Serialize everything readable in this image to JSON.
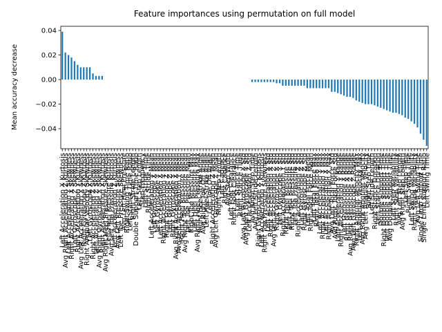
{
  "chart_data": {
    "type": "bar",
    "title": "Feature importances using permutation on full model",
    "y_label": "Mean accuracy decrease",
    "color": "#1f77b4",
    "ylim": [
      -0.0563,
      0.0434
    ],
    "yticks": [
      {
        "value": -0.04,
        "label": "−0.04"
      },
      {
        "value": -0.02,
        "label": "−0.02"
      },
      {
        "value": 0,
        "label": "0.00"
      },
      {
        "value": 0.02,
        "label": "0.02"
      },
      {
        "value": 0.04,
        "label": "0.04"
      }
    ],
    "categories": [
      "Left Acceleration X Kurtosis",
      "Avg Right Acceleration Z Kurtosis",
      "Left Acceleration Y Skewness",
      "Right Acceleration X Skewness",
      "Left Gyroscope Z Skewness",
      "Right Acceleration Y Kurtosis",
      "Avg Left Acceleration X Skewness",
      "Right Gyroscope Z Kurtosis",
      "Right Angular Velocity Skewness",
      "Left Gyroscope X Kurtosis",
      "Right Acceleration Z Skewness",
      "Left Acceleration Z Skewness",
      "Avg Right Gyroscope X Skewness",
      "Right Acceleration X Kurtosis",
      "Avg Right Heel Pressure Skewness",
      "Left Heel Pressure Kurtosis",
      "Avg Left Toe Pressure Kurtosis",
      "Left Acceleration Z Kurtosis",
      "Avg Left Pressure Skewness",
      "Left Toe Pressure Skewness",
      "Avg Left Heel Pressure",
      "Right Swing Time Ratio",
      "Left Stance Time Ratio",
      "Right Stride Length",
      "Double Support Time Ratio",
      "Left Step Length",
      "Step Frequency",
      "Left Stride Time",
      "Right Stride Time",
      "Left Acceleration Y Mean",
      "Left Gyroscope X Mean",
      "Left Gyroscope Y Mean",
      "Left Acceleration X Mean",
      "Right Acceleration Y Mean",
      "Right Gyroscope Z Mean",
      "Left Gyroscope Z Mean",
      "Right Gyroscope Y Mean",
      "Avg Right Acceleration X Mean",
      "Avg Left Acceleration Y Mean",
      "Right Heel Pressure Mean",
      "Avg Right Toe Pressure Mean",
      "Left Toe Pressure Mean",
      "Right Toe Pressure Max",
      "Left Heel Pressure Max",
      "Avg Right Heel Pressure Max",
      "Right Heel Strike Angle",
      "Avg Right Toe Off Angle",
      "Left Heel Strike Angle",
      "Left Toe Off Angle",
      "Right Acceleration Z Mean",
      "Avg Left Gyroscope Z Mean",
      "Right Step Length",
      "Left Cadence",
      "Right Cadence",
      "Avg Step Width",
      "Left Foot Clearance",
      "Right Foot Clearance",
      "Left Stance Time",
      "Right Stance Time",
      "Avg Left Gyroscope X Std",
      "Avg Right Gyroscope Y Std",
      "Left Acceleration Z Std",
      "Avg Right Step Time",
      "Avg Left Stride Length",
      "Right Gyroscope X Kurtosis",
      "Left Acceleration Y Kurtosis",
      "Right Toe Pressure Skewness",
      "Left Acceleration X Std",
      "Right Acceleration X Std",
      "Avg Left Acceleration Z Std",
      "Right Gyroscope X Std",
      "Left Gyroscope Y Std",
      "Right Acceleration Y Std",
      "Right Heel Pressure Std",
      "Left Heel Pressure Std",
      "Right Toe Pressure Std",
      "Left Toe Pressure Std",
      "Right Acceleration Z Std",
      "Left Gyroscope Z Std",
      "Right Gyroscope Z Std",
      "Left Total Force Mean",
      "Right Total Force Mean",
      "Left Total Force Max",
      "Right Total Force Max",
      "Left Acceleration Y Max",
      "Right Acceleration Y Max",
      "Left Acceleration X Max",
      "Right Acceleration X Max",
      "Avg Left Total Force Std",
      "Avg Right Total Force Std",
      "Left Acceleration Y Range",
      "Right Acceleration Y Range",
      "Left Gyroscope X Range",
      "Right Gyroscope X Range",
      "Avg Right Gyroscope Z Range",
      "Avg Left Gyroscope Z Range",
      "Right Angular Velocity Max",
      "Left Angular Velocity Max",
      "Avg Right Angular Velocity",
      "Avg Left Angular Velocity",
      "Right Step Time",
      "Left Stride Length",
      "Right Stance Duration",
      "Left Stance Duration",
      "Double Support Time",
      "Right Double Support Time",
      "Left Double Support Time",
      "Avg Double Support Time",
      "Left Step Variability",
      "Right Step Variability",
      "Avg Left Step Length",
      "Avg Right Step Length",
      "Left Step Time",
      "Right Swing Time",
      "Left Swing Variability",
      "Right Swing Variability",
      "Avg Left Swing Time",
      "Single Limb Support Time",
      "Single Limb Support Ratio",
      "Left Swing Time"
    ],
    "values": [
      0.039,
      0.022,
      0.02,
      0.018,
      0.015,
      0.012,
      0.01,
      0.01,
      0.01,
      0.01,
      0.005,
      0.003,
      0.003,
      0.003,
      0,
      0,
      0,
      0,
      0,
      0,
      0,
      0,
      0,
      0,
      0,
      0,
      0,
      0,
      0,
      0,
      0,
      0,
      0,
      0,
      0,
      0,
      0,
      0,
      0,
      0,
      0,
      0,
      0,
      0,
      0,
      0,
      0,
      0,
      0,
      0,
      0,
      0,
      0,
      0,
      0,
      0,
      0,
      0,
      0,
      0,
      0,
      0,
      -0.002,
      -0.002,
      -0.002,
      -0.002,
      -0.002,
      -0.002,
      -0.002,
      -0.002,
      -0.003,
      -0.003,
      -0.005,
      -0.005,
      -0.005,
      -0.005,
      -0.005,
      -0.005,
      -0.005,
      -0.005,
      -0.007,
      -0.007,
      -0.007,
      -0.007,
      -0.007,
      -0.007,
      -0.007,
      -0.007,
      -0.01,
      -0.01,
      -0.011,
      -0.012,
      -0.013,
      -0.014,
      -0.014,
      -0.015,
      -0.017,
      -0.018,
      -0.019,
      -0.02,
      -0.02,
      -0.02,
      -0.021,
      -0.022,
      -0.023,
      -0.024,
      -0.025,
      -0.026,
      -0.027,
      -0.027,
      -0.028,
      -0.029,
      -0.031,
      -0.032,
      -0.034,
      -0.036,
      -0.039,
      -0.044,
      -0.049,
      -0.054
    ]
  }
}
